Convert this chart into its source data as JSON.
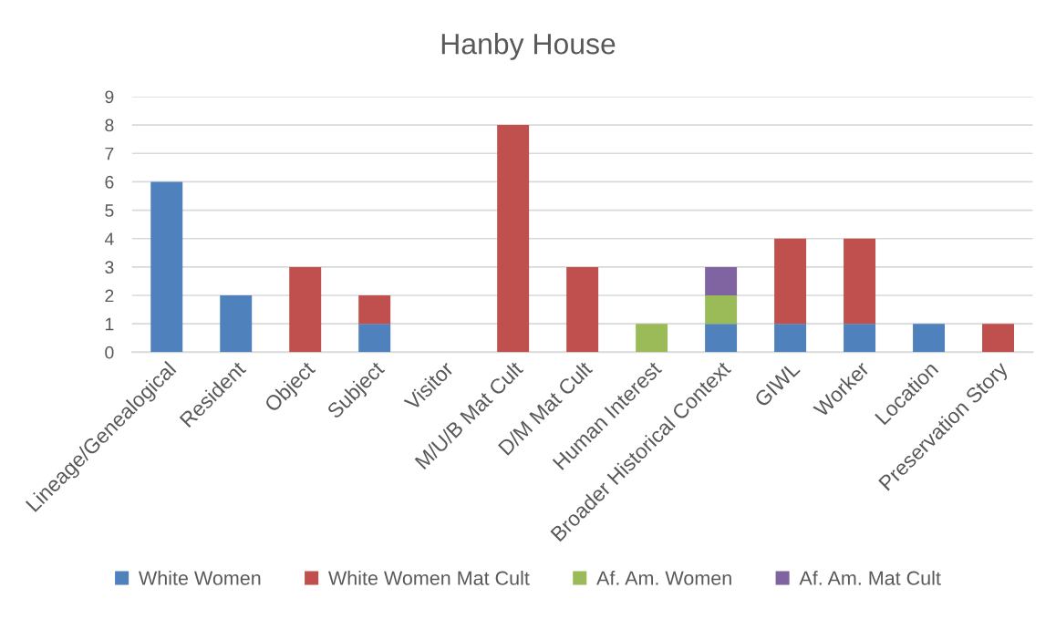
{
  "chart_data": {
    "type": "bar",
    "title": "Hanby House",
    "stacked": true,
    "categories": [
      "Lineage/Genealogical",
      "Resident",
      "Object",
      "Subject",
      "Visitor",
      "M/U/B Mat Cult",
      "D/M Mat Cult",
      "Human Interest",
      "Broader Historical Context",
      "GIWL",
      "Worker",
      "Location",
      "Preservation Story"
    ],
    "series": [
      {
        "name": "White Women",
        "color": "#4f81bd",
        "values": [
          6,
          2,
          0,
          1,
          0,
          0,
          0,
          0,
          1,
          1,
          1,
          1,
          0
        ]
      },
      {
        "name": "White Women Mat Cult",
        "color": "#c0504d",
        "values": [
          0,
          0,
          3,
          1,
          0,
          8,
          3,
          0,
          0,
          3,
          3,
          0,
          1
        ]
      },
      {
        "name": "Af. Am. Women",
        "color": "#9bbb59",
        "values": [
          0,
          0,
          0,
          0,
          0,
          0,
          0,
          1,
          1,
          0,
          0,
          0,
          0
        ]
      },
      {
        "name": "Af. Am. Mat Cult",
        "color": "#8064a2",
        "values": [
          0,
          0,
          0,
          0,
          0,
          0,
          0,
          0,
          1,
          0,
          0,
          0,
          0
        ]
      }
    ],
    "ylim": [
      0,
      9
    ],
    "yticks": [
      0,
      1,
      2,
      3,
      4,
      5,
      6,
      7,
      8,
      9
    ],
    "grid": "y",
    "legend": "bottom"
  }
}
